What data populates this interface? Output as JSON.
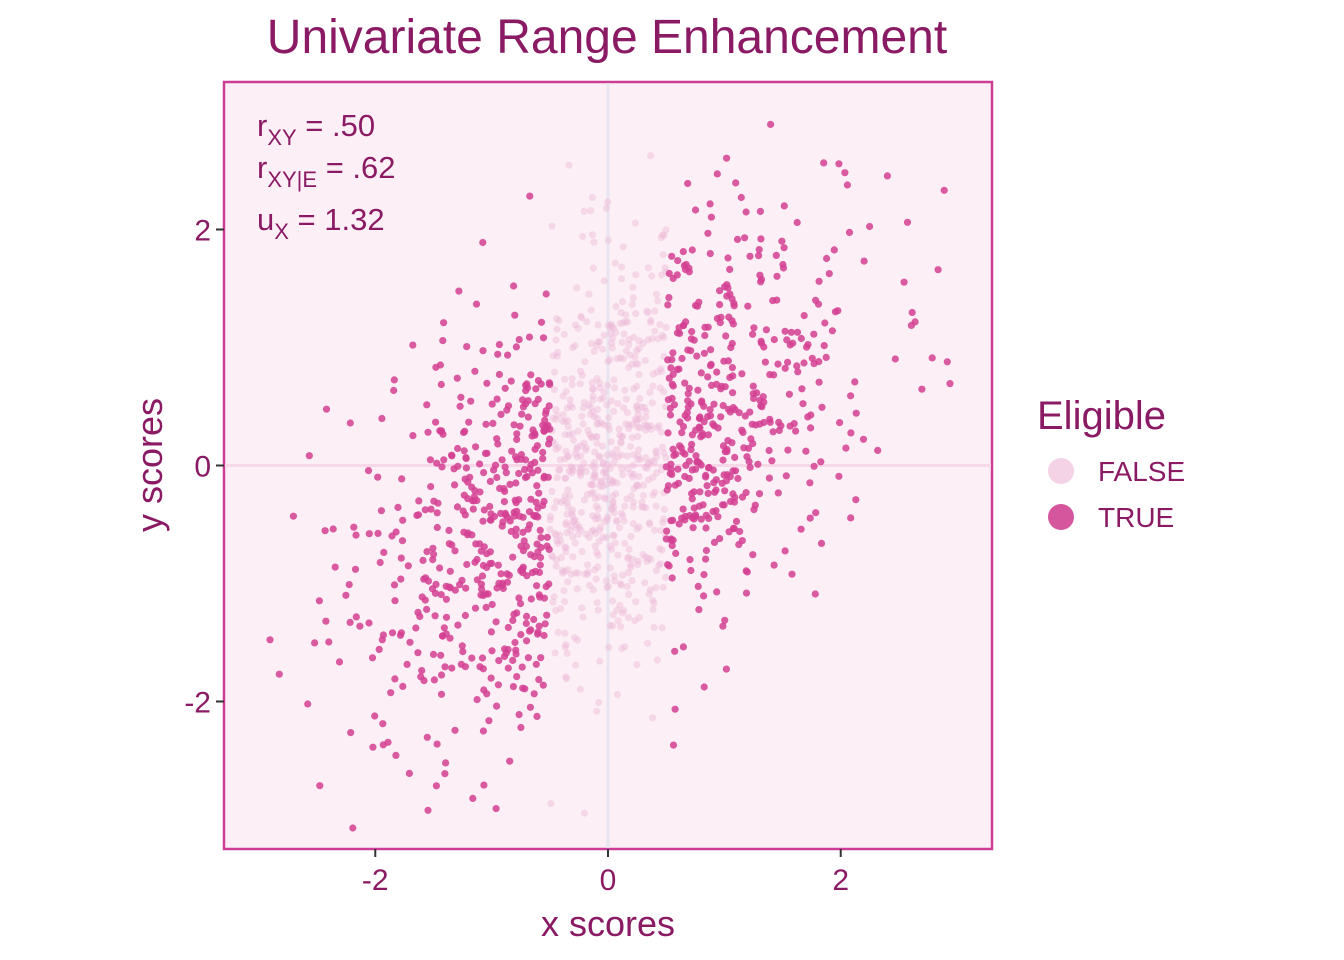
{
  "chart_data": {
    "type": "scatter",
    "title": "Univariate Range Enhancement",
    "xlabel": "x scores",
    "ylabel": "y scores",
    "xlim": [
      -3.3,
      3.3
    ],
    "ylim": [
      -3.25,
      3.25
    ],
    "xticks": [
      -2,
      0,
      2
    ],
    "yticks": [
      -2,
      0,
      2
    ],
    "xtick_labels": [
      "-2",
      "0",
      "2"
    ],
    "ytick_labels": [
      "-2",
      "0",
      "2"
    ],
    "annotations": [
      {
        "base": "r",
        "sub": "XY",
        "rest": " = .50"
      },
      {
        "base": "r",
        "sub": "XY|E",
        "rest": " = .62"
      },
      {
        "base": "u",
        "sub": "X",
        "rest": " = 1.32"
      }
    ],
    "legend": {
      "title": "Eligible",
      "placement": "right",
      "entries": [
        {
          "label": "FALSE",
          "color": "#f4d3e6"
        },
        {
          "label": "TRUE",
          "color": "#d6569e"
        }
      ]
    },
    "eligibility_rule": "TRUE when |x| > 0.5",
    "n_points": 1500,
    "correlation_xy": 0.5,
    "grid": false,
    "colors": {
      "text": "#8b1a65",
      "panel_fill": "#fcf0f6",
      "panel_border": "#cc3d96",
      "zero_line_x": "#e7e5f0",
      "zero_line_y": "#f6d8e8",
      "point_true": "#d33f93",
      "point_false": "#eeb7d6"
    }
  }
}
